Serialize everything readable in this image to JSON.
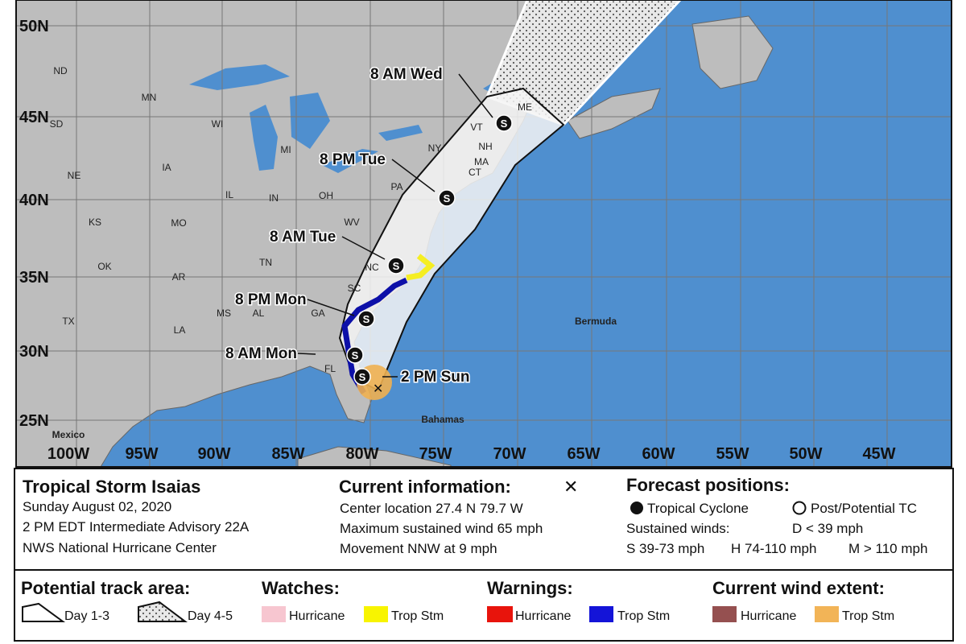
{
  "map": {
    "latitudes": [
      "50N",
      "45N",
      "40N",
      "35N",
      "30N",
      "25N"
    ],
    "longitudes": [
      "100W",
      "95W",
      "90W",
      "85W",
      "80W",
      "75W",
      "70W",
      "65W",
      "60W",
      "55W",
      "50W",
      "45W"
    ],
    "places": [
      "ND",
      "SD",
      "MN",
      "WI",
      "MI",
      "NY",
      "ME",
      "VT",
      "NH",
      "MA",
      "CT",
      "PA",
      "IA",
      "NE",
      "IL",
      "IN",
      "OH",
      "KS",
      "MO",
      "WV",
      "TN",
      "NC",
      "OK",
      "AR",
      "SC",
      "MS",
      "AL",
      "GA",
      "TX",
      "LA",
      "FL"
    ],
    "regions": [
      "Bermuda",
      "Mexico",
      "Bahamas"
    ],
    "storm_symbol": "S",
    "forecast_labels": [
      "2 PM Sun",
      "8 AM Mon",
      "8 PM Mon",
      "8 AM Tue",
      "8 PM Tue",
      "8 AM Wed"
    ]
  },
  "info": {
    "storm": {
      "title": "Tropical Storm Isaias",
      "lines": [
        "Sunday August 02, 2020",
        "2 PM EDT Intermediate Advisory 22A",
        "NWS National Hurricane Center"
      ]
    },
    "current": {
      "title": "Current information:",
      "symbol": "✕",
      "lines": [
        "Center location 27.4 N 79.7 W",
        "Maximum sustained wind 65 mph",
        "Movement NNW at 9 mph"
      ]
    },
    "forecast": {
      "title": "Forecast positions:",
      "tropical": "Tropical Cyclone",
      "post": "Post/Potential TC",
      "winds_label": "Sustained winds:",
      "d": "D < 39 mph",
      "scale": [
        "S 39-73 mph",
        "H 74-110 mph",
        "M > 110 mph"
      ]
    }
  },
  "legend": {
    "track": {
      "title": "Potential track area:",
      "items": [
        "Day 1-3",
        "Day 4-5"
      ]
    },
    "watches": {
      "title": "Watches:",
      "items": [
        "Hurricane",
        "Trop Stm"
      ]
    },
    "warnings": {
      "title": "Warnings:",
      "items": [
        "Hurricane",
        "Trop Stm"
      ]
    },
    "wind": {
      "title": "Current wind extent:",
      "items": [
        "Hurricane",
        "Trop Stm"
      ]
    }
  }
}
